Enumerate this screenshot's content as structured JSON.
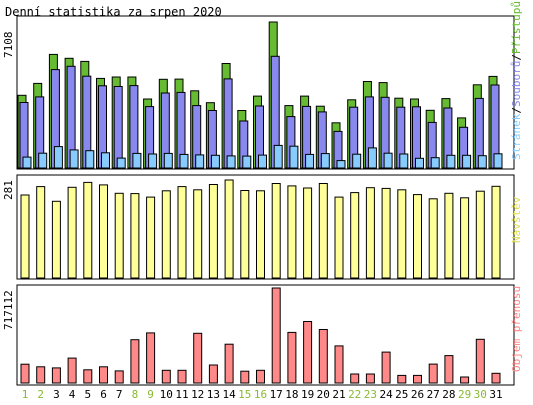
{
  "title": "Denní statistika za srpen 2020",
  "colors": {
    "hits": "#66bb33",
    "files": "#8888ee",
    "pages": "#88ccff",
    "visits": "#ffff99",
    "kbytes": "#ff8888",
    "weekend": "#88bb33",
    "weekday": "#000000"
  },
  "chart_data": [
    {
      "type": "bar",
      "panel": "top",
      "max_label": "7108",
      "legend": {
        "pages": "Stránek",
        "files": "Souborů",
        "hits": "Přístupů"
      },
      "categories": [
        "1",
        "2",
        "3",
        "4",
        "5",
        "6",
        "7",
        "8",
        "9",
        "10",
        "11",
        "12",
        "13",
        "14",
        "15",
        "16",
        "17",
        "18",
        "19",
        "20",
        "21",
        "22",
        "23",
        "24",
        "25",
        "26",
        "27",
        "28",
        "29",
        "30",
        "31"
      ],
      "ylim": [
        0,
        7108
      ],
      "series": [
        {
          "name": "Přístupů",
          "values": [
            3540,
            4120,
            5530,
            5340,
            5190,
            4360,
            4430,
            4430,
            3360,
            4320,
            4330,
            3760,
            3180,
            5090,
            2800,
            3500,
            7108,
            3040,
            3500,
            3010,
            2200,
            3320,
            4210,
            4160,
            3400,
            3360,
            2810,
            3380,
            2440,
            4050,
            4460
          ]
        },
        {
          "name": "Souborů",
          "values": [
            3190,
            3460,
            4790,
            4950,
            4470,
            4000,
            3970,
            4010,
            2990,
            3650,
            3680,
            3040,
            2800,
            4340,
            2290,
            3020,
            5440,
            2500,
            3000,
            2730,
            1780,
            2960,
            3460,
            3440,
            2960,
            2980,
            2220,
            2920,
            1980,
            3390,
            4040
          ]
        },
        {
          "name": "Stránek",
          "values": [
            530,
            720,
            1040,
            880,
            840,
            740,
            480,
            710,
            680,
            710,
            660,
            640,
            620,
            590,
            580,
            630,
            1100,
            1060,
            660,
            700,
            360,
            670,
            980,
            720,
            680,
            470,
            500,
            620,
            620,
            600,
            690
          ]
        }
      ]
    },
    {
      "type": "bar",
      "panel": "middle",
      "max_label": "281",
      "legend": "Návštěv",
      "categories": [
        "1",
        "2",
        "3",
        "4",
        "5",
        "6",
        "7",
        "8",
        "9",
        "10",
        "11",
        "12",
        "13",
        "14",
        "15",
        "16",
        "17",
        "18",
        "19",
        "20",
        "21",
        "22",
        "23",
        "24",
        "25",
        "26",
        "27",
        "28",
        "29",
        "30",
        "31"
      ],
      "ylim": [
        0,
        281
      ],
      "values": [
        238,
        262,
        220,
        260,
        274,
        267,
        243,
        242,
        232,
        250,
        262,
        253,
        268,
        281,
        251,
        250,
        271,
        264,
        258,
        271,
        232,
        245,
        259,
        257,
        253,
        239,
        227,
        243,
        230,
        249,
        263
      ]
    },
    {
      "type": "bar",
      "panel": "bottom",
      "max_label": "717112",
      "legend": "Objem přenosu",
      "categories": [
        "1",
        "2",
        "3",
        "4",
        "5",
        "6",
        "7",
        "8",
        "9",
        "10",
        "11",
        "12",
        "13",
        "14",
        "15",
        "16",
        "17",
        "18",
        "19",
        "20",
        "21",
        "22",
        "23",
        "24",
        "25",
        "26",
        "27",
        "28",
        "29",
        "30",
        "31"
      ],
      "ylim": [
        0,
        717112
      ],
      "values": [
        142000,
        122000,
        114000,
        188000,
        100000,
        122000,
        91000,
        327000,
        378000,
        96000,
        96000,
        375000,
        136000,
        293000,
        89000,
        96000,
        717112,
        382000,
        464000,
        404000,
        280000,
        68000,
        68000,
        233000,
        57000,
        57000,
        143000,
        207000,
        45000,
        330000,
        73000
      ]
    }
  ],
  "x_axis": {
    "labels": [
      "1",
      "2",
      "3",
      "4",
      "5",
      "6",
      "7",
      "8",
      "9",
      "10",
      "11",
      "12",
      "13",
      "14",
      "15",
      "16",
      "17",
      "18",
      "19",
      "20",
      "21",
      "22",
      "23",
      "24",
      "25",
      "26",
      "27",
      "28",
      "29",
      "30",
      "31"
    ],
    "weekend": [
      true,
      true,
      false,
      false,
      false,
      false,
      false,
      true,
      true,
      false,
      false,
      false,
      false,
      false,
      true,
      true,
      false,
      false,
      false,
      false,
      false,
      true,
      true,
      false,
      false,
      false,
      false,
      false,
      true,
      true,
      false
    ]
  }
}
